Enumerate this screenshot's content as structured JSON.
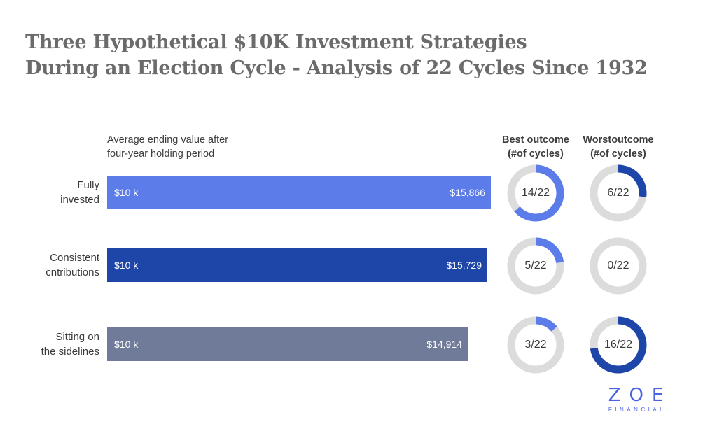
{
  "title": {
    "line1": "Three Hypothetical $10K Investment Strategies",
    "line2": "During an Election Cycle - Analysis of 22 Cycles Since 1932"
  },
  "subhead": {
    "line1": "Average ending value after",
    "line2": "four-year holding period"
  },
  "columns": {
    "best": {
      "line1": "Best outcome",
      "line2": "(#of cycles)"
    },
    "worst": {
      "line1": "Worstoutcome",
      "line2": "(#of cycles)"
    }
  },
  "logo": {
    "main": "ZOE",
    "sub": "FINANCIAL"
  },
  "chart_data": {
    "type": "bar",
    "orientation": "horizontal",
    "categories": [
      "Fully invested",
      "Consistent cntributions",
      "Sitting on the sidelines"
    ],
    "series": [
      {
        "values": [
          15866,
          15729,
          14914
        ]
      }
    ],
    "xlim": [
      0,
      15866
    ],
    "grid": false,
    "rows": [
      {
        "label_lines": [
          "Fully",
          "invested"
        ],
        "start_label": "$10 k",
        "end_label": "$15,866",
        "value": 15866,
        "color": "#5c7cea",
        "best": {
          "text": "14/22",
          "count": 14,
          "total": 22,
          "color": "#5c7cea"
        },
        "worst": {
          "text": "6/22",
          "count": 6,
          "total": 22,
          "color": "#1e45a8"
        }
      },
      {
        "label_lines": [
          "Consistent",
          "cntributions"
        ],
        "start_label": "$10 k",
        "end_label": "$15,729",
        "value": 15729,
        "color": "#1e45a8",
        "best": {
          "text": "5/22",
          "count": 5,
          "total": 22,
          "color": "#5c7cea"
        },
        "worst": {
          "text": "0/22",
          "count": 0,
          "total": 22,
          "color": "#1e45a8"
        }
      },
      {
        "label_lines": [
          "Sitting on",
          "the sidelines"
        ],
        "start_label": "$10 k",
        "end_label": "$14,914",
        "value": 14914,
        "color": "#707b9a",
        "best": {
          "text": "3/22",
          "count": 3,
          "total": 22,
          "color": "#5c7cea"
        },
        "worst": {
          "text": "16/22",
          "count": 16,
          "total": 22,
          "color": "#1e45a8"
        }
      }
    ],
    "ring_track_color": "#dcdcdc"
  }
}
